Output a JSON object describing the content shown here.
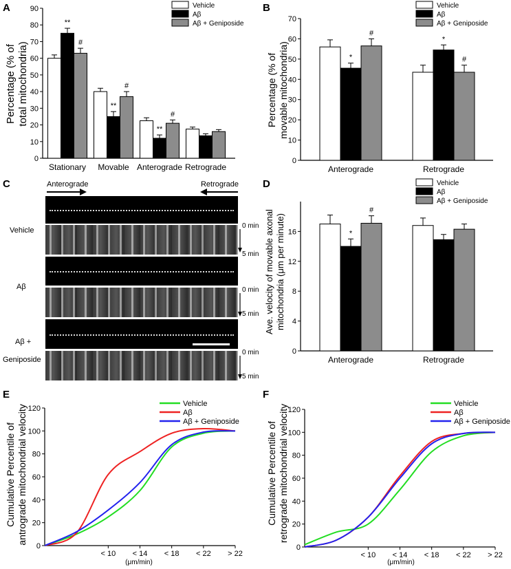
{
  "colors": {
    "vehicle": "#ffffff",
    "abeta": "#000000",
    "genip": "#8c8c8c",
    "line_vehicle": "#22dd22",
    "line_abeta": "#ee2222",
    "line_genip": "#2222ee"
  },
  "legend": {
    "vehicle": "Vehicle",
    "abeta": "Aβ",
    "genip": "Aβ + Geniposide"
  },
  "panels": {
    "A": {
      "letter": "A",
      "ylabel_1": "Percentage (% of",
      "ylabel_2": "total mitochondria)"
    },
    "B": {
      "letter": "B",
      "ylabel_1": "Percentage (% of",
      "ylabel_2": "movable mitochondria)"
    },
    "C": {
      "letter": "C",
      "anterograde": "Anterograde",
      "retrograde": "Retrograde",
      "row_vehicle": "Vehicle",
      "row_abeta": "Aβ",
      "row_genip_1": "Aβ +",
      "row_genip_2": "Geniposide",
      "t0": "0 min",
      "t5": "5 min"
    },
    "D": {
      "letter": "D",
      "ylabel_1": "Ave. velocity of movable axonal",
      "ylabel_2": "mitochondria (μm per minute)"
    },
    "E": {
      "letter": "E",
      "ylabel_1": "Cumulative Percentile of",
      "ylabel_2": "antrograde mitochondrial velocity",
      "xlabel": "(μm/min)"
    },
    "F": {
      "letter": "F",
      "ylabel_1": "Cumulative Percentile of",
      "ylabel_2": "retrograde mitochondrial velocity",
      "xlabel": "(μm/min)"
    }
  },
  "chart_data": [
    {
      "id": "A",
      "type": "bar",
      "categories": [
        "Stationary",
        "Movable",
        "Anterograde",
        "Retrograde"
      ],
      "ylim": [
        0,
        90
      ],
      "yticks": [
        0,
        10,
        20,
        30,
        40,
        50,
        60,
        70,
        80,
        90
      ],
      "series": [
        {
          "name": "Vehicle",
          "values": [
            60,
            40,
            22.5,
            17.5
          ],
          "errors": [
            2,
            2,
            1.8,
            1.2
          ]
        },
        {
          "name": "Aβ",
          "values": [
            75,
            25,
            12,
            13.5
          ],
          "errors": [
            3,
            3,
            2,
            1.2
          ]
        },
        {
          "name": "Aβ + Geniposide",
          "values": [
            63,
            37,
            21,
            16
          ],
          "errors": [
            3,
            3,
            2,
            1.2
          ]
        }
      ],
      "annotations": [
        {
          "category": 0,
          "series": 1,
          "text": "**"
        },
        {
          "category": 0,
          "series": 2,
          "text": "#"
        },
        {
          "category": 1,
          "series": 1,
          "text": "**"
        },
        {
          "category": 1,
          "series": 2,
          "text": "#"
        },
        {
          "category": 2,
          "series": 1,
          "text": "**"
        },
        {
          "category": 2,
          "series": 2,
          "text": "#"
        }
      ]
    },
    {
      "id": "B",
      "type": "bar",
      "categories": [
        "Anterograde",
        "Retrograde"
      ],
      "ylim": [
        0,
        70
      ],
      "yticks": [
        0,
        10,
        20,
        30,
        40,
        50,
        60,
        70
      ],
      "series": [
        {
          "name": "Vehicle",
          "values": [
            56,
            43.5
          ],
          "errors": [
            3.5,
            3.5
          ]
        },
        {
          "name": "Aβ",
          "values": [
            45.5,
            54.5
          ],
          "errors": [
            2.5,
            2.5
          ]
        },
        {
          "name": "Aβ + Geniposide",
          "values": [
            56.5,
            43.5
          ],
          "errors": [
            3.5,
            3.5
          ]
        }
      ],
      "annotations": [
        {
          "category": 0,
          "series": 1,
          "text": "*"
        },
        {
          "category": 0,
          "series": 2,
          "text": "#"
        },
        {
          "category": 1,
          "series": 1,
          "text": "*"
        },
        {
          "category": 1,
          "series": 2,
          "text": "#"
        }
      ]
    },
    {
      "id": "D",
      "type": "bar",
      "categories": [
        "Anterograde",
        "Retrograde"
      ],
      "ylim": [
        0,
        20
      ],
      "yticks": [
        0,
        4,
        8,
        12,
        16
      ],
      "series": [
        {
          "name": "Vehicle",
          "values": [
            17,
            16.8
          ],
          "errors": [
            1.2,
            1.0
          ]
        },
        {
          "name": "Aβ",
          "values": [
            14,
            14.9
          ],
          "errors": [
            1.0,
            0.7
          ]
        },
        {
          "name": "Aβ + Geniposide",
          "values": [
            17.1,
            16.3
          ],
          "errors": [
            1.0,
            0.7
          ]
        }
      ],
      "annotations": [
        {
          "category": 0,
          "series": 1,
          "text": "*"
        },
        {
          "category": 0,
          "series": 2,
          "text": "#"
        }
      ]
    },
    {
      "id": "E",
      "type": "line",
      "categories": [
        "< 10",
        "< 14",
        "< 18",
        "< 22",
        "> 22"
      ],
      "ylim": [
        0,
        120
      ],
      "yticks": [
        0,
        20,
        40,
        60,
        80,
        100,
        120
      ],
      "series": [
        {
          "name": "Vehicle",
          "points": [
            [
              0,
              0
            ],
            [
              1,
              10
            ],
            [
              2,
              25
            ],
            [
              3,
              48
            ],
            [
              4,
              86
            ],
            [
              5,
              98
            ],
            [
              6,
              100
            ]
          ]
        },
        {
          "name": "Aβ",
          "points": [
            [
              0,
              0
            ],
            [
              1,
              11
            ],
            [
              2,
              62
            ],
            [
              3,
              82
            ],
            [
              4,
              98
            ],
            [
              5,
              102
            ],
            [
              6,
              100
            ]
          ]
        },
        {
          "name": "Aβ + Geniposide",
          "points": [
            [
              0,
              0
            ],
            [
              1,
              12
            ],
            [
              2,
              31
            ],
            [
              3,
              55
            ],
            [
              4,
              88
            ],
            [
              5,
              99
            ],
            [
              6,
              100
            ]
          ]
        }
      ]
    },
    {
      "id": "F",
      "type": "line",
      "categories": [
        "< 10",
        "< 14",
        "< 18",
        "< 22",
        "> 22"
      ],
      "ylim": [
        0,
        120
      ],
      "yticks": [
        0,
        20,
        40,
        60,
        80,
        100,
        120
      ],
      "series": [
        {
          "name": "Vehicle",
          "points": [
            [
              0,
              2
            ],
            [
              1,
              13
            ],
            [
              2,
              20
            ],
            [
              3,
              50
            ],
            [
              4,
              83
            ],
            [
              5,
              97
            ],
            [
              6,
              100
            ]
          ]
        },
        {
          "name": "Aβ",
          "points": [
            [
              0,
              0
            ],
            [
              1,
              6
            ],
            [
              2,
              26
            ],
            [
              3,
              62
            ],
            [
              4,
              92
            ],
            [
              5,
              99
            ],
            [
              6,
              100
            ]
          ]
        },
        {
          "name": "Aβ + Geniposide",
          "points": [
            [
              0,
              0
            ],
            [
              1,
              6
            ],
            [
              2,
              26
            ],
            [
              3,
              60
            ],
            [
              4,
              90
            ],
            [
              5,
              99
            ],
            [
              6,
              100
            ]
          ]
        }
      ]
    }
  ]
}
